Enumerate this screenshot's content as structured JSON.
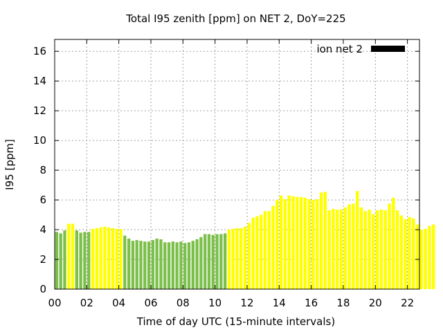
{
  "chart_data": {
    "type": "bar",
    "title": "Total I95 zenith [ppm] on NET 2, DoY=225",
    "xlabel": "Time of day UTC (15-minute intervals)",
    "ylabel": "I95 [ppm]",
    "ylim": [
      0,
      16.8
    ],
    "xlim": [
      0,
      22.75
    ],
    "yticks": [
      "0",
      "2",
      "4",
      "6",
      "8",
      "10",
      "12",
      "14",
      "16"
    ],
    "xticks": [
      "00",
      "02",
      "04",
      "06",
      "08",
      "10",
      "12",
      "14",
      "16",
      "18",
      "20",
      "22"
    ],
    "grid": true,
    "legend": {
      "label": "ion net 2",
      "position": "top-right",
      "color": "#000000"
    },
    "colors": {
      "green": "#7cbf4a",
      "yellow": "#ffff00"
    },
    "bar_interval_hours": 0.25,
    "series": [
      {
        "values": [
          3.85,
          3.75,
          3.95,
          4.4,
          4.4,
          3.95,
          3.8,
          3.85,
          3.85,
          4.05,
          4.1,
          4.15,
          4.2,
          4.15,
          4.1,
          4.05,
          4.05,
          3.6,
          3.4,
          3.25,
          3.3,
          3.25,
          3.2,
          3.2,
          3.3,
          3.4,
          3.35,
          3.15,
          3.15,
          3.2,
          3.15,
          3.2,
          3.1,
          3.15,
          3.25,
          3.35,
          3.5,
          3.7,
          3.7,
          3.65,
          3.7,
          3.7,
          3.75,
          4.0,
          4.05,
          4.1,
          4.1,
          4.2,
          4.45,
          4.8,
          4.9,
          5.0,
          5.25,
          5.25,
          5.6,
          6.0,
          6.3,
          6.05,
          6.3,
          6.25,
          6.2,
          6.2,
          6.15,
          6.05,
          6.0,
          6.05,
          6.5,
          6.55,
          5.3,
          5.4,
          5.35,
          5.35,
          5.5,
          5.7,
          5.75,
          6.6,
          5.5,
          5.25,
          5.35,
          5.05,
          5.3,
          5.35,
          5.3,
          5.75,
          6.15,
          5.3,
          4.95,
          4.7,
          4.85,
          4.75,
          4.35,
          4.0,
          4.05,
          4.25,
          4.35
        ],
        "colors": [
          "green",
          "green",
          "green",
          "yellow",
          "yellow",
          "green",
          "green",
          "green",
          "green",
          "yellow",
          "yellow",
          "yellow",
          "yellow",
          "yellow",
          "yellow",
          "yellow",
          "yellow",
          "green",
          "green",
          "green",
          "green",
          "green",
          "green",
          "green",
          "green",
          "green",
          "green",
          "green",
          "green",
          "green",
          "green",
          "green",
          "green",
          "green",
          "green",
          "green",
          "green",
          "green",
          "green",
          "green",
          "green",
          "green",
          "green",
          "yellow",
          "yellow",
          "yellow",
          "yellow",
          "yellow",
          "yellow",
          "yellow",
          "yellow",
          "yellow",
          "yellow",
          "yellow",
          "yellow",
          "yellow",
          "yellow",
          "yellow",
          "yellow",
          "yellow",
          "yellow",
          "yellow",
          "yellow",
          "yellow",
          "yellow",
          "yellow",
          "yellow",
          "yellow",
          "yellow",
          "yellow",
          "yellow",
          "yellow",
          "yellow",
          "yellow",
          "yellow",
          "yellow",
          "yellow",
          "yellow",
          "yellow",
          "yellow",
          "yellow",
          "yellow",
          "yellow",
          "yellow",
          "yellow",
          "yellow",
          "yellow",
          "yellow",
          "yellow",
          "yellow",
          "yellow",
          "yellow",
          "yellow",
          "yellow",
          "yellow"
        ]
      }
    ]
  }
}
